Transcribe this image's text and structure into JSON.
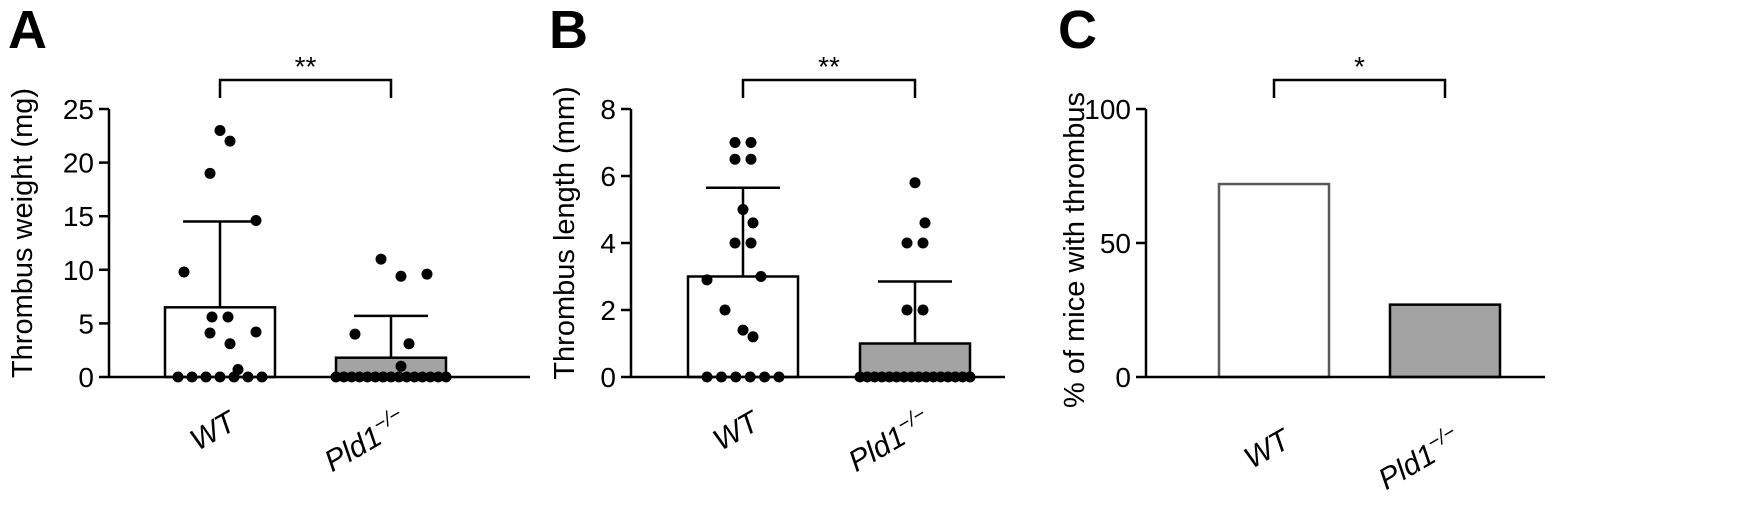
{
  "colors": {
    "wt_fill": "#ffffff",
    "ko_fill": "#a3a3a3",
    "axis": "#000000",
    "panel_c_wt_border": "#595959"
  },
  "chart_data": [
    {
      "panel": "A",
      "type": "bar",
      "ylabel": "Thrombus weight (mg)",
      "ylim": [
        0,
        25
      ],
      "yticks": [
        "0",
        "5",
        "10",
        "15",
        "20",
        "25"
      ],
      "categories": [
        "WT",
        "Pld1"
      ],
      "category_superscript": [
        "",
        "−/−"
      ],
      "values": [
        6.5,
        1.8
      ],
      "error": [
        8.0,
        3.9
      ],
      "points": [
        [
          0,
          0,
          0.7,
          0,
          4.2,
          4.1,
          3.1,
          0,
          5.6,
          0,
          9.8,
          14.6,
          19,
          22,
          23,
          5.6,
          0,
          0
        ],
        [
          0,
          0,
          0,
          0,
          0,
          0,
          1.0,
          0,
          0,
          3.1,
          4.0,
          9.6,
          11.0,
          9.4,
          0,
          0,
          0,
          0,
          0,
          0,
          0
        ]
      ],
      "significance": "**",
      "grid": false,
      "legend": "none"
    },
    {
      "panel": "B",
      "type": "bar",
      "ylabel": "Thrombus length (mm)",
      "ylim": [
        0,
        8
      ],
      "yticks": [
        "0",
        "2",
        "4",
        "6",
        "8"
      ],
      "categories": [
        "WT",
        "Pld1"
      ],
      "category_superscript": [
        "",
        "−/−"
      ],
      "values": [
        3.0,
        1.0
      ],
      "error": [
        2.65,
        1.85
      ],
      "points": [
        [
          0,
          0,
          0,
          0,
          0,
          0,
          1.2,
          1.4,
          2.0,
          3.0,
          2.9,
          4.0,
          4.0,
          4.6,
          5.0,
          6.5,
          6.5,
          7.0,
          7.0
        ],
        [
          0,
          0,
          0,
          0,
          0,
          0,
          0,
          0,
          0,
          0,
          0,
          0,
          0,
          0,
          0,
          0,
          2.0,
          2.0,
          4.0,
          4.0,
          4.6,
          5.8
        ]
      ],
      "significance": "**",
      "grid": false,
      "legend": "none"
    },
    {
      "panel": "C",
      "type": "bar",
      "ylabel": "% of mice with thrombus",
      "ylim": [
        0,
        100
      ],
      "yticks": [
        "0",
        "50",
        "100"
      ],
      "categories": [
        "WT",
        "Pld1"
      ],
      "category_superscript": [
        "",
        "−/−"
      ],
      "values": [
        72,
        27
      ],
      "significance": "*",
      "grid": false,
      "legend": "none"
    }
  ]
}
